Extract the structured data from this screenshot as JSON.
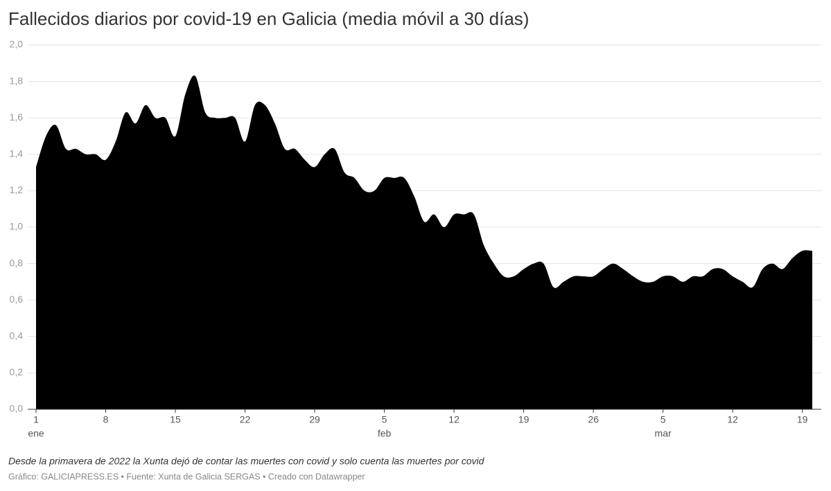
{
  "chart_data": {
    "type": "area",
    "title": "Fallecidos diarios por covid-19 en Galicia (media móvil a 30 días)",
    "notes": "Desde la primavera de 2022 la Xunta dejó de contar las muertes con covid y solo cuenta las muertes por covid",
    "source": "Gráfico: GALICIAPRESS.ES • Fuente: Xunta de Galicia SERGAS • Creado con Datawrapper",
    "color": "#000000",
    "grid": true,
    "x": [
      1,
      2,
      3,
      4,
      5,
      6,
      7,
      8,
      9,
      10,
      11,
      12,
      13,
      14,
      15,
      16,
      17,
      18,
      19,
      20,
      21,
      22,
      23,
      24,
      25,
      26,
      27,
      28,
      29,
      30,
      31,
      32,
      33,
      34,
      35,
      36,
      37,
      38,
      39,
      40,
      41,
      42,
      43,
      44,
      45,
      46,
      47,
      48,
      49,
      50,
      51,
      52,
      53,
      54,
      55,
      56,
      57,
      58,
      59,
      60,
      61,
      62,
      63,
      64,
      65,
      66,
      67,
      68,
      69,
      70,
      71,
      72,
      73,
      74,
      75,
      76,
      77,
      78,
      79
    ],
    "values": [
      1.33,
      1.5,
      1.56,
      1.43,
      1.43,
      1.4,
      1.4,
      1.37,
      1.47,
      1.63,
      1.57,
      1.67,
      1.6,
      1.6,
      1.5,
      1.73,
      1.83,
      1.63,
      1.6,
      1.6,
      1.6,
      1.47,
      1.67,
      1.67,
      1.57,
      1.43,
      1.43,
      1.37,
      1.33,
      1.4,
      1.43,
      1.3,
      1.27,
      1.2,
      1.2,
      1.27,
      1.27,
      1.27,
      1.17,
      1.03,
      1.07,
      1.0,
      1.07,
      1.07,
      1.07,
      0.9,
      0.8,
      0.73,
      0.73,
      0.77,
      0.8,
      0.8,
      0.67,
      0.7,
      0.73,
      0.73,
      0.73,
      0.77,
      0.8,
      0.77,
      0.73,
      0.7,
      0.7,
      0.73,
      0.73,
      0.7,
      0.73,
      0.73,
      0.77,
      0.77,
      0.73,
      0.7,
      0.67,
      0.77,
      0.8,
      0.77,
      0.83,
      0.87,
      0.87
    ],
    "xlim": [
      1,
      79
    ],
    "xticks": [
      {
        "value": 1,
        "label": "1"
      },
      {
        "value": 8,
        "label": "8"
      },
      {
        "value": 15,
        "label": "15"
      },
      {
        "value": 22,
        "label": "22"
      },
      {
        "value": 29,
        "label": "29"
      },
      {
        "value": 36,
        "label": "5"
      },
      {
        "value": 43,
        "label": "12"
      },
      {
        "value": 50,
        "label": "19"
      },
      {
        "value": 57,
        "label": "26"
      },
      {
        "value": 64,
        "label": "5"
      },
      {
        "value": 71,
        "label": "12"
      },
      {
        "value": 78,
        "label": "19"
      }
    ],
    "month_labels": [
      {
        "value": 1,
        "label": "ene"
      },
      {
        "value": 36,
        "label": "feb"
      },
      {
        "value": 64,
        "label": "mar"
      }
    ],
    "ylim": [
      0,
      2
    ],
    "yticks": [
      {
        "value": 0,
        "label": "0,0"
      },
      {
        "value": 0.2,
        "label": "0,2"
      },
      {
        "value": 0.4,
        "label": "0,4"
      },
      {
        "value": 0.6,
        "label": "0,6"
      },
      {
        "value": 0.8,
        "label": "0,8"
      },
      {
        "value": 1,
        "label": "1,0"
      },
      {
        "value": 1.2,
        "label": "1,2"
      },
      {
        "value": 1.4,
        "label": "1,4"
      },
      {
        "value": 1.6,
        "label": "1,6"
      },
      {
        "value": 1.8,
        "label": "1,8"
      },
      {
        "value": 2,
        "label": "2,0"
      }
    ]
  }
}
